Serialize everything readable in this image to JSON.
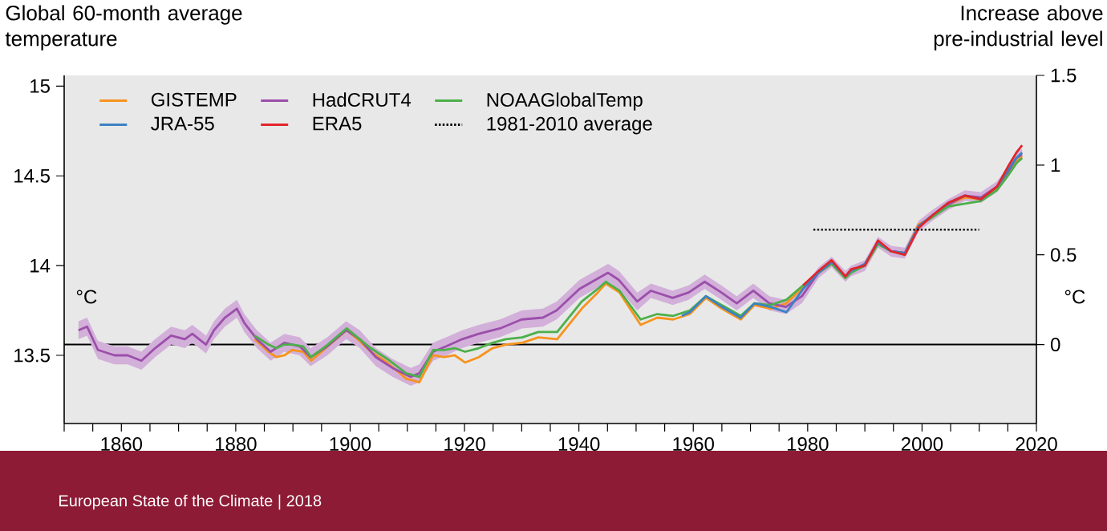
{
  "chart_data": {
    "type": "line",
    "ylabel": "Global 60-month average temperature",
    "y2label": "Increase above pre-industrial level",
    "annotations": [
      "°C",
      "°C",
      "European State of the Climate | 2018"
    ],
    "xlim": [
      1850,
      2020
    ],
    "xticks": [
      {
        "value": 1850,
        "label": null
      },
      {
        "value": 1855,
        "label": null
      },
      1860,
      {
        "value": 1865,
        "label": null
      },
      {
        "value": 1870,
        "label": null
      },
      {
        "value": 1875,
        "label": null
      },
      1880,
      {
        "value": 1885,
        "label": null
      },
      {
        "value": 1890,
        "label": null
      },
      {
        "value": 1895,
        "label": null
      },
      1900,
      {
        "value": 1905,
        "label": null
      },
      {
        "value": 1910,
        "label": null
      },
      {
        "value": 1915,
        "label": null
      },
      1920,
      {
        "value": 1925,
        "label": null
      },
      {
        "value": 1930,
        "label": null
      },
      {
        "value": 1935,
        "label": null
      },
      1940,
      {
        "value": 1945,
        "label": null
      },
      {
        "value": 1950,
        "label": null
      },
      {
        "value": 1955,
        "label": null
      },
      1960,
      {
        "value": 1965,
        "label": null
      },
      {
        "value": 1970,
        "label": null
      },
      {
        "value": 1975,
        "label": null
      },
      1980,
      {
        "value": 1985,
        "label": null
      },
      {
        "value": 1990,
        "label": null
      },
      {
        "value": 1995,
        "label": null
      },
      2000,
      {
        "value": 2005,
        "label": null
      },
      {
        "value": 2010,
        "label": null
      },
      {
        "value": 2015,
        "label": null
      },
      2020
    ],
    "ylim": [
      13.12,
      15.06
    ],
    "yticks": [
      13.5,
      14,
      14.5,
      15
    ],
    "y2lim": [
      -0.44,
      1.5
    ],
    "y2ticks": [
      0,
      0.5,
      1,
      1.5
    ],
    "legend": "top left",
    "grid": false,
    "marker": "none",
    "ref_lines": [
      {
        "axis": "y2",
        "value": 0,
        "color": "#000000"
      }
    ],
    "series": [
      {
        "name": "GISTEMP",
        "color": "#f7931e",
        "x": [
          1883.3,
          1885.7,
          1887.1,
          1888.5,
          1889.9,
          1891.8,
          1893.2,
          1896.1,
          1899.4,
          1901.3,
          1903.6,
          1906.5,
          1909.8,
          1912.1,
          1914.5,
          1916.4,
          1918.3,
          1920.1,
          1922.5,
          1924.9,
          1927.2,
          1930.1,
          1932.9,
          1936.2,
          1940.5,
          1943.3,
          1944.7,
          1947.1,
          1950.8,
          1953.7,
          1956.5,
          1959.4,
          1962.2,
          1965.0,
          1968.3,
          1970.7,
          1973.5,
          1976.3,
          1979.2,
          1981.9,
          1984.2,
          1986.6,
          1987.6,
          1990.0,
          1992.3,
          1994.6,
          1997.0,
          1999.4,
          2001.8,
          2004.6,
          2007.5,
          2010.3,
          2013.1,
          2015.0,
          2016.5,
          2017.5
        ],
        "values": [
          13.59,
          13.52,
          13.49,
          13.5,
          13.53,
          13.52,
          13.47,
          13.55,
          13.64,
          13.59,
          13.52,
          13.46,
          13.37,
          13.35,
          13.5,
          13.49,
          13.5,
          13.46,
          13.49,
          13.54,
          13.56,
          13.57,
          13.6,
          13.59,
          13.76,
          13.85,
          13.9,
          13.85,
          13.67,
          13.71,
          13.7,
          13.73,
          13.82,
          13.76,
          13.7,
          13.78,
          13.76,
          13.79,
          13.88,
          13.96,
          14.01,
          13.93,
          13.97,
          14.0,
          14.12,
          14.08,
          14.07,
          14.23,
          14.27,
          14.34,
          14.38,
          14.37,
          14.43,
          14.51,
          14.58,
          14.61
        ]
      },
      {
        "name": "HadCRUT4",
        "color": "#9b4fab",
        "x": [
          1852.5,
          1854.0,
          1855.9,
          1858.8,
          1861.1,
          1863.5,
          1865.9,
          1868.7,
          1871.1,
          1872.4,
          1874.8,
          1876.2,
          1878.1,
          1880.2,
          1881.5,
          1883.7,
          1886.1,
          1888.5,
          1891.2,
          1893.1,
          1896.0,
          1899.3,
          1901.7,
          1904.5,
          1907.4,
          1910.6,
          1912.1,
          1914.5,
          1916.8,
          1919.6,
          1922.5,
          1926.2,
          1930.0,
          1933.7,
          1936.1,
          1940.1,
          1945.1,
          1947.0,
          1950.2,
          1952.6,
          1956.4,
          1959.2,
          1962.0,
          1964.9,
          1967.6,
          1970.5,
          1973.3,
          1976.2,
          1979.0,
          1981.9,
          1984.2,
          1986.6,
          1987.6,
          1990.0,
          1992.3,
          1994.6,
          1997.0,
          1999.4,
          2001.8,
          2004.6,
          2007.5,
          2010.3,
          2013.1,
          2015.0,
          2016.5,
          2017.5
        ],
        "values": [
          13.64,
          13.66,
          13.53,
          13.5,
          13.5,
          13.47,
          13.54,
          13.61,
          13.59,
          13.62,
          13.56,
          13.64,
          13.71,
          13.76,
          13.68,
          13.59,
          13.52,
          13.57,
          13.55,
          13.49,
          13.55,
          13.64,
          13.59,
          13.49,
          13.43,
          13.38,
          13.4,
          13.52,
          13.55,
          13.59,
          13.62,
          13.65,
          13.7,
          13.71,
          13.75,
          13.87,
          13.96,
          13.92,
          13.8,
          13.86,
          13.82,
          13.85,
          13.91,
          13.85,
          13.79,
          13.86,
          13.79,
          13.77,
          13.83,
          13.96,
          14.02,
          13.94,
          13.97,
          14.0,
          14.13,
          14.08,
          14.07,
          14.22,
          14.28,
          14.34,
          14.39,
          14.38,
          14.44,
          14.52,
          14.6,
          14.62
        ],
        "lower": [
          13.59,
          13.61,
          13.48,
          13.45,
          13.45,
          13.42,
          13.49,
          13.56,
          13.54,
          13.57,
          13.51,
          13.59,
          13.66,
          13.71,
          13.63,
          13.54,
          13.47,
          13.52,
          13.5,
          13.44,
          13.5,
          13.59,
          13.54,
          13.44,
          13.38,
          13.33,
          13.35,
          13.47,
          13.5,
          13.54,
          13.57,
          13.6,
          13.65,
          13.66,
          13.7,
          13.82,
          13.91,
          13.87,
          13.75,
          13.82,
          13.78,
          13.81,
          13.87,
          13.81,
          13.75,
          13.82,
          13.75,
          13.73,
          13.79,
          13.93,
          13.99,
          13.91,
          13.94,
          13.97,
          14.1,
          14.05,
          14.04,
          14.19,
          14.25,
          14.31,
          14.36,
          14.35,
          14.41,
          14.49,
          14.57,
          14.59
        ],
        "upper": [
          13.69,
          13.71,
          13.58,
          13.55,
          13.55,
          13.52,
          13.59,
          13.66,
          13.64,
          13.67,
          13.61,
          13.69,
          13.76,
          13.81,
          13.73,
          13.64,
          13.57,
          13.62,
          13.6,
          13.54,
          13.6,
          13.69,
          13.64,
          13.54,
          13.48,
          13.43,
          13.45,
          13.57,
          13.6,
          13.64,
          13.67,
          13.7,
          13.75,
          13.76,
          13.8,
          13.92,
          14.01,
          13.97,
          13.85,
          13.9,
          13.86,
          13.89,
          13.95,
          13.89,
          13.83,
          13.9,
          13.83,
          13.81,
          13.87,
          13.99,
          14.05,
          13.97,
          14.0,
          14.03,
          14.16,
          14.11,
          14.1,
          14.25,
          14.31,
          14.37,
          14.42,
          14.41,
          14.47,
          14.55,
          14.63,
          14.65
        ]
      },
      {
        "name": "NOAAGlobalTemp",
        "color": "#4cb04a",
        "x": [
          1883.3,
          1885.7,
          1887.1,
          1888.5,
          1889.9,
          1891.8,
          1893.2,
          1896.1,
          1899.4,
          1901.3,
          1903.6,
          1906.5,
          1909.8,
          1912.1,
          1914.5,
          1916.4,
          1918.3,
          1920.1,
          1922.5,
          1924.9,
          1927.2,
          1930.1,
          1932.9,
          1936.2,
          1940.5,
          1943.3,
          1944.7,
          1947.1,
          1950.8,
          1953.7,
          1956.5,
          1959.4,
          1962.2,
          1965.0,
          1968.3,
          1970.7,
          1973.5,
          1976.3,
          1979.2,
          1981.9,
          1984.2,
          1986.6,
          1987.6,
          1990.0,
          1992.3,
          1994.6,
          1997.0,
          1999.4,
          2001.8,
          2004.6,
          2007.5,
          2010.3,
          2013.1,
          2015.0,
          2016.5,
          2017.5
        ],
        "values": [
          13.61,
          13.56,
          13.54,
          13.56,
          13.56,
          13.55,
          13.49,
          13.56,
          13.65,
          13.6,
          13.54,
          13.48,
          13.4,
          13.38,
          13.53,
          13.53,
          13.54,
          13.52,
          13.54,
          13.57,
          13.59,
          13.6,
          13.63,
          13.63,
          13.8,
          13.87,
          13.91,
          13.86,
          13.7,
          13.73,
          13.72,
          13.75,
          13.83,
          13.78,
          13.72,
          13.79,
          13.78,
          13.81,
          13.89,
          13.96,
          14.01,
          13.93,
          13.96,
          14.0,
          14.12,
          14.08,
          14.06,
          14.22,
          14.27,
          14.33,
          null,
          14.36,
          14.42,
          14.5,
          14.57,
          14.6
        ]
      },
      {
        "name": "JRA-55",
        "color": "#3b82c4",
        "x": [
          1958.0,
          1959.4,
          1962.2,
          1965.0,
          1968.3,
          1970.7,
          1973.5,
          1976.3,
          1979.2,
          1981.9,
          1984.2,
          1986.6,
          1987.6,
          1990.0,
          1992.3,
          1994.6,
          1997.0,
          1999.4,
          2001.8,
          2004.6,
          2007.5,
          2010.3,
          2013.1,
          2015.0,
          2016.5,
          2017.5
        ],
        "values": [
          13.72,
          13.74,
          13.83,
          13.77,
          13.71,
          13.79,
          13.77,
          13.74,
          13.87,
          13.96,
          14.02,
          13.94,
          13.97,
          14.01,
          14.13,
          14.08,
          14.07,
          14.22,
          14.28,
          14.35,
          14.39,
          14.37,
          14.44,
          14.53,
          14.6,
          14.63
        ]
      },
      {
        "name": "ERA5",
        "color": "#e3242b",
        "x": [
          1979.2,
          1981.9,
          1984.2,
          1986.6,
          1987.6,
          1990.0,
          1992.3,
          1994.6,
          1997.0,
          1999.4,
          2001.8,
          2004.6,
          2007.5,
          2010.3,
          2013.1,
          2015.0,
          2016.5,
          2017.5
        ],
        "values": [
          13.89,
          13.97,
          14.03,
          13.94,
          13.98,
          14.0,
          14.14,
          14.08,
          14.06,
          14.21,
          14.28,
          14.35,
          14.39,
          14.37,
          14.44,
          14.55,
          14.63,
          14.67
        ]
      },
      {
        "name": "1981-2010 average",
        "color": "#000000",
        "line_style": "dotted",
        "x": [
          1981,
          2010
        ],
        "values": [
          14.2,
          14.2
        ]
      }
    ]
  }
}
